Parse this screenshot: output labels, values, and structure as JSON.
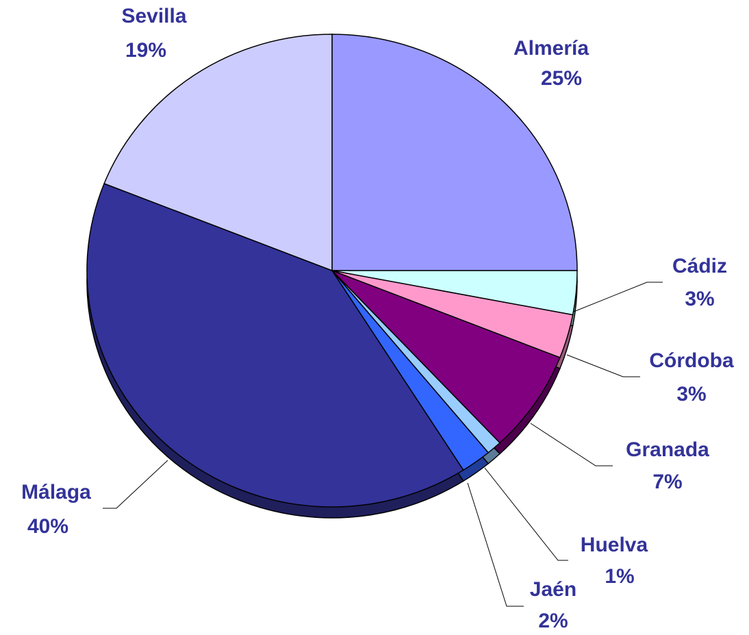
{
  "chart_data": {
    "type": "pie",
    "categories": [
      "Almería",
      "Cádiz",
      "Córdoba",
      "Granada",
      "Huelva",
      "Jaén",
      "Málaga",
      "Sevilla"
    ],
    "values": [
      25,
      3,
      3,
      7,
      1,
      2,
      40,
      19
    ],
    "value_labels": [
      "25%",
      "3%",
      "3%",
      "7%",
      "1%",
      "2%",
      "40%",
      "19%"
    ],
    "colors": [
      "#9999ff",
      "#ccffff",
      "#ff99cc",
      "#800080",
      "#99ccff",
      "#3366ff",
      "#333399",
      "#ccccff"
    ]
  }
}
